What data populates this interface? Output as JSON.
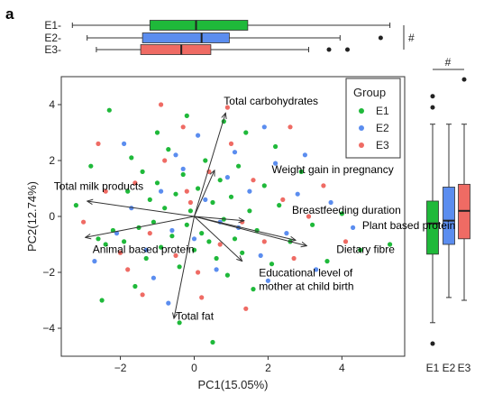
{
  "panel_letter": "a",
  "colors": {
    "E1": "#1fb93a",
    "E2": "#5b8def",
    "E3": "#ef6b64",
    "line": "#333333",
    "outlier": "#222222"
  },
  "chart_data": [
    {
      "type": "boxplot",
      "orientation": "horizontal",
      "axis": "PC1",
      "categories": [
        "E1-",
        "E2-",
        "E3-"
      ],
      "groups": [
        "E1",
        "E2",
        "E3"
      ],
      "xlim": [
        -3.6,
        5.7
      ],
      "series": [
        {
          "name": "E1",
          "q1": -1.2,
          "median": 0.05,
          "q3": 1.45,
          "whisker_low": -3.3,
          "whisker_high": 5.3,
          "outliers": []
        },
        {
          "name": "E2",
          "q1": -1.4,
          "median": 0.2,
          "q3": 0.95,
          "whisker_low": -2.9,
          "whisker_high": 3.95,
          "outliers": [
            5.05
          ]
        },
        {
          "name": "E3",
          "q1": -1.45,
          "median": -0.35,
          "q3": 0.45,
          "whisker_low": -2.65,
          "whisker_high": 3.1,
          "outliers": [
            3.65,
            4.15
          ]
        }
      ],
      "significance": "#"
    },
    {
      "type": "boxplot",
      "orientation": "vertical",
      "axis": "PC2",
      "categories": [
        "E1",
        "E2",
        "E3"
      ],
      "ylim": [
        -5.0,
        5.0
      ],
      "series": [
        {
          "name": "E1",
          "q1": -1.35,
          "median": -0.25,
          "q3": 0.55,
          "whisker_low": -3.8,
          "whisker_high": 3.3,
          "outliers": [
            -4.55,
            3.9,
            4.3
          ]
        },
        {
          "name": "E2",
          "q1": -1.0,
          "median": -0.15,
          "q3": 1.05,
          "whisker_low": -2.9,
          "whisker_high": 3.3,
          "outliers": []
        },
        {
          "name": "E3",
          "q1": -0.8,
          "median": 0.2,
          "q3": 1.15,
          "whisker_low": -3.0,
          "whisker_high": 3.3,
          "outliers": [
            4.9
          ]
        }
      ],
      "significance": "#"
    },
    {
      "type": "scatter",
      "subtype": "biplot",
      "xlabel": "PC1(15.05%)",
      "ylabel": "PC2(12.74%)",
      "xlim": [
        -3.6,
        5.7
      ],
      "ylim": [
        -5.0,
        5.0
      ],
      "xticks": [
        -2,
        0,
        2,
        4
      ],
      "yticks": [
        -4,
        -2,
        0,
        2,
        4
      ],
      "xtick_labels": [
        "−2",
        "0",
        "2",
        "4"
      ],
      "ytick_labels": [
        "−4",
        "−2",
        "0",
        "2",
        "4"
      ],
      "grid": false,
      "legend": {
        "title": "Group",
        "position": "top-right",
        "entries": [
          "E1",
          "E2",
          "E3"
        ]
      },
      "loadings": [
        {
          "label": "Total carbohydrates",
          "x": 0.85,
          "y": 3.7,
          "label_x": 0.8,
          "label_y": 4.0
        },
        {
          "label": "Weight gain in pregnancy",
          "x": 0.55,
          "y": 1.65,
          "label_x": 2.1,
          "label_y": 1.55
        },
        {
          "label": "Total milk products",
          "x": -2.9,
          "y": 0.55,
          "label_x": -3.8,
          "label_y": 0.95
        },
        {
          "label": "Breastfeeding duration",
          "x": 1.35,
          "y": -0.15,
          "label_x": 2.65,
          "label_y": 0.1
        },
        {
          "label": "Plant based protein",
          "x": 2.75,
          "y": -0.85,
          "label_x": 4.55,
          "label_y": -0.45
        },
        {
          "label": "Animal based protein",
          "x": -2.95,
          "y": -0.75,
          "label_x": -2.75,
          "label_y": -1.3
        },
        {
          "label": "Dietary fibre",
          "x": 3.05,
          "y": -1.05,
          "label_x": 3.85,
          "label_y": -1.3
        },
        {
          "label": "Educational level of\nmother at child birth",
          "x": 1.3,
          "y": -1.6,
          "label_x": 1.75,
          "label_y": -2.15
        },
        {
          "label": "Total fat",
          "x": -0.55,
          "y": -3.65,
          "label_x": -0.5,
          "label_y": -3.7
        }
      ],
      "points": [
        [
          -2.6,
          -0.8,
          "E1"
        ],
        [
          -2.4,
          -1.0,
          "E1"
        ],
        [
          -2.2,
          -0.5,
          "E1"
        ],
        [
          -1.9,
          -0.9,
          "E1"
        ],
        [
          -1.8,
          0.9,
          "E1"
        ],
        [
          -1.7,
          2.1,
          "E1"
        ],
        [
          -1.5,
          -0.4,
          "E1"
        ],
        [
          -1.4,
          1.6,
          "E1"
        ],
        [
          -1.3,
          -1.5,
          "E1"
        ],
        [
          -1.2,
          0.6,
          "E1"
        ],
        [
          -1.1,
          -0.2,
          "E1"
        ],
        [
          -1.0,
          1.2,
          "E1"
        ],
        [
          -0.9,
          -1.1,
          "E1"
        ],
        [
          -0.8,
          0.3,
          "E1"
        ],
        [
          -0.7,
          2.4,
          "E1"
        ],
        [
          -0.6,
          -0.7,
          "E1"
        ],
        [
          -0.5,
          0.8,
          "E1"
        ],
        [
          -0.4,
          -1.8,
          "E1"
        ],
        [
          -0.3,
          1.5,
          "E1"
        ],
        [
          -0.2,
          -0.3,
          "E1"
        ],
        [
          -0.1,
          0.2,
          "E1"
        ],
        [
          0.0,
          -1.2,
          "E1"
        ],
        [
          0.1,
          1.0,
          "E1"
        ],
        [
          0.2,
          -0.6,
          "E1"
        ],
        [
          0.3,
          2.0,
          "E1"
        ],
        [
          0.4,
          -0.9,
          "E1"
        ],
        [
          0.5,
          0.5,
          "E1"
        ],
        [
          0.6,
          -1.5,
          "E1"
        ],
        [
          0.7,
          1.3,
          "E1"
        ],
        [
          0.8,
          -0.1,
          "E1"
        ],
        [
          0.9,
          -2.1,
          "E1"
        ],
        [
          1.0,
          0.7,
          "E1"
        ],
        [
          1.1,
          -0.8,
          "E1"
        ],
        [
          1.2,
          1.8,
          "E1"
        ],
        [
          1.3,
          -1.3,
          "E1"
        ],
        [
          1.5,
          0.2,
          "E1"
        ],
        [
          1.7,
          -0.5,
          "E1"
        ],
        [
          1.9,
          1.1,
          "E1"
        ],
        [
          2.1,
          -1.7,
          "E1"
        ],
        [
          2.3,
          0.4,
          "E1"
        ],
        [
          2.6,
          -0.9,
          "E1"
        ],
        [
          2.9,
          1.6,
          "E1"
        ],
        [
          3.2,
          -0.3,
          "E1"
        ],
        [
          3.6,
          -1.6,
          "E1"
        ],
        [
          4.0,
          0.1,
          "E1"
        ],
        [
          4.5,
          -1.2,
          "E1"
        ],
        [
          5.3,
          -1.0,
          "E1"
        ],
        [
          -3.2,
          0.4,
          "E1"
        ],
        [
          -2.8,
          1.8,
          "E1"
        ],
        [
          -2.5,
          -3.0,
          "E1"
        ],
        [
          -1.6,
          -2.5,
          "E1"
        ],
        [
          -0.4,
          -3.8,
          "E1"
        ],
        [
          0.5,
          -4.5,
          "E1"
        ],
        [
          -1.0,
          3.0,
          "E1"
        ],
        [
          0.8,
          3.4,
          "E1"
        ],
        [
          -2.3,
          3.8,
          "E1"
        ],
        [
          1.4,
          3.0,
          "E1"
        ],
        [
          2.2,
          2.5,
          "E1"
        ],
        [
          -0.2,
          3.6,
          "E1"
        ],
        [
          1.6,
          -2.6,
          "E1"
        ],
        [
          -2.1,
          -0.6,
          "E2"
        ],
        [
          -1.7,
          0.3,
          "E2"
        ],
        [
          -1.3,
          -1.2,
          "E2"
        ],
        [
          -0.9,
          0.9,
          "E2"
        ],
        [
          -0.6,
          -0.5,
          "E2"
        ],
        [
          -0.3,
          1.7,
          "E2"
        ],
        [
          0.0,
          -0.8,
          "E2"
        ],
        [
          0.3,
          0.6,
          "E2"
        ],
        [
          0.6,
          -1.9,
          "E2"
        ],
        [
          0.9,
          1.4,
          "E2"
        ],
        [
          1.2,
          -0.4,
          "E2"
        ],
        [
          1.5,
          0.9,
          "E2"
        ],
        [
          1.8,
          -1.4,
          "E2"
        ],
        [
          2.2,
          1.9,
          "E2"
        ],
        [
          2.5,
          -0.6,
          "E2"
        ],
        [
          2.8,
          0.8,
          "E2"
        ],
        [
          3.3,
          -1.9,
          "E2"
        ],
        [
          3.7,
          0.5,
          "E2"
        ],
        [
          4.3,
          -0.4,
          "E2"
        ],
        [
          -2.7,
          -1.6,
          "E2"
        ],
        [
          -1.9,
          2.6,
          "E2"
        ],
        [
          -1.1,
          -2.2,
          "E2"
        ],
        [
          0.1,
          2.9,
          "E2"
        ],
        [
          1.1,
          2.3,
          "E2"
        ],
        [
          2.0,
          -2.3,
          "E2"
        ],
        [
          3.0,
          2.2,
          "E2"
        ],
        [
          -0.7,
          -3.1,
          "E2"
        ],
        [
          1.9,
          3.2,
          "E2"
        ],
        [
          -0.5,
          2.2,
          "E2"
        ],
        [
          0.7,
          -0.2,
          "E2"
        ],
        [
          -2.4,
          0.9,
          "E3"
        ],
        [
          -2.0,
          -1.3,
          "E3"
        ],
        [
          -1.6,
          1.2,
          "E3"
        ],
        [
          -1.2,
          -0.6,
          "E3"
        ],
        [
          -0.8,
          2.0,
          "E3"
        ],
        [
          -0.5,
          -1.4,
          "E3"
        ],
        [
          -0.2,
          0.9,
          "E3"
        ],
        [
          0.1,
          -2.0,
          "E3"
        ],
        [
          0.4,
          1.6,
          "E3"
        ],
        [
          0.7,
          -1.0,
          "E3"
        ],
        [
          1.0,
          2.6,
          "E3"
        ],
        [
          1.3,
          -0.2,
          "E3"
        ],
        [
          1.6,
          1.3,
          "E3"
        ],
        [
          1.9,
          -0.9,
          "E3"
        ],
        [
          2.4,
          0.6,
          "E3"
        ],
        [
          2.7,
          -1.5,
          "E3"
        ],
        [
          3.1,
          0.0,
          "E3"
        ],
        [
          3.5,
          1.1,
          "E3"
        ],
        [
          4.1,
          -0.9,
          "E3"
        ],
        [
          -3.0,
          -0.2,
          "E3"
        ],
        [
          -2.6,
          2.6,
          "E3"
        ],
        [
          -1.4,
          -2.8,
          "E3"
        ],
        [
          -0.3,
          3.2,
          "E3"
        ],
        [
          0.9,
          3.9,
          "E3"
        ],
        [
          -0.9,
          4.0,
          "E3"
        ],
        [
          2.6,
          3.2,
          "E3"
        ],
        [
          -1.8,
          -1.9,
          "E3"
        ],
        [
          0.2,
          -2.9,
          "E3"
        ],
        [
          1.4,
          -3.3,
          "E3"
        ],
        [
          -0.1,
          0.5,
          "E3"
        ]
      ]
    }
  ]
}
